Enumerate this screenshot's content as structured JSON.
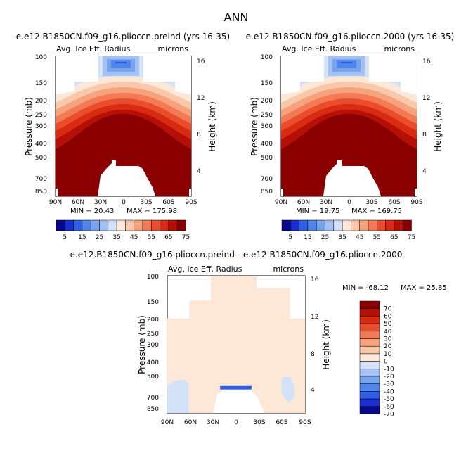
{
  "page_title": "ANN",
  "chart_data": [
    {
      "type": "heatmap",
      "title": "e.e12.B1850CN.f09_g16.plioccn.preind (yrs 16-35)",
      "field": "Avg. Ice Eff. Radius",
      "units": "microns",
      "ylabel": "Pressure (mb)",
      "ylabel_right": "Height (km)",
      "x_ticks": [
        "90N",
        "60N",
        "30N",
        "0",
        "30S",
        "60S",
        "90S"
      ],
      "y_ticks": [
        "100",
        "150",
        "200",
        "250",
        "300",
        "400",
        "500",
        "700",
        "850"
      ],
      "height_ticks": [
        "16",
        "12",
        "8",
        "4"
      ],
      "min_text": "MIN =  20.43",
      "max_text": "MAX = 175.98",
      "colorbar_labels": [
        "5",
        "15",
        "25",
        "35",
        "45",
        "55",
        "65",
        "75"
      ]
    },
    {
      "type": "heatmap",
      "title": "e.e12.B1850CN.f09_g16.plioccn.2000 (yrs 16-35)",
      "field": "Avg. Ice Eff. Radius",
      "units": "microns",
      "ylabel": "Pressure (mb)",
      "ylabel_right": "Height (km)",
      "x_ticks": [
        "90N",
        "60N",
        "30N",
        "0",
        "30S",
        "60S",
        "90S"
      ],
      "y_ticks": [
        "100",
        "150",
        "200",
        "250",
        "300",
        "400",
        "500",
        "700",
        "850"
      ],
      "height_ticks": [
        "16",
        "12",
        "8",
        "4"
      ],
      "min_text": "MIN =  19.75",
      "max_text": "MAX = 169.75",
      "colorbar_labels": [
        "5",
        "15",
        "25",
        "35",
        "45",
        "55",
        "65",
        "75"
      ]
    },
    {
      "type": "heatmap",
      "title": "e.e12.B1850CN.f09_g16.plioccn.preind - e.e12.B1850CN.f09_g16.plioccn.2000",
      "field": "Avg. Ice Eff. Radius",
      "units": "microns",
      "ylabel": "Pressure (mb)",
      "ylabel_right": "Height (km)",
      "x_ticks": [
        "90N",
        "60N",
        "30N",
        "0",
        "30S",
        "60S",
        "90S"
      ],
      "y_ticks": [
        "100",
        "150",
        "200",
        "250",
        "300",
        "400",
        "500",
        "700",
        "850"
      ],
      "height_ticks": [
        "16",
        "12",
        "8",
        "4"
      ],
      "min_text": "MIN = -68.12",
      "max_text": "MAX =  25.85",
      "colorbar_labels": [
        "70",
        "60",
        "50",
        "40",
        "30",
        "20",
        "10",
        "0",
        "-10",
        "-20",
        "-30",
        "-40",
        "-50",
        "-60",
        "-70"
      ]
    }
  ],
  "colors": {
    "abs_scale": [
      "#08088a",
      "#1a2fd0",
      "#2e5de8",
      "#4f86ec",
      "#77a4ee",
      "#a3c2f3",
      "#d3e2f8",
      "#fde7d6",
      "#f9c7aa",
      "#f6a27c",
      "#f27a55",
      "#ea4d2c",
      "#d92a12",
      "#b50f06",
      "#8a0000"
    ],
    "diff_scale": [
      "#8a0000",
      "#b50f06",
      "#d92a12",
      "#ea4d2c",
      "#f27a55",
      "#f6a27c",
      "#f9c7aa",
      "#fde7d6",
      "#d3e2f8",
      "#a3c2f3",
      "#77a4ee",
      "#4f86ec",
      "#2e5de8",
      "#1a2fd0",
      "#08088a"
    ],
    "diff_fill": "#fde7d6",
    "diff_blue": "#d3e2f8"
  }
}
